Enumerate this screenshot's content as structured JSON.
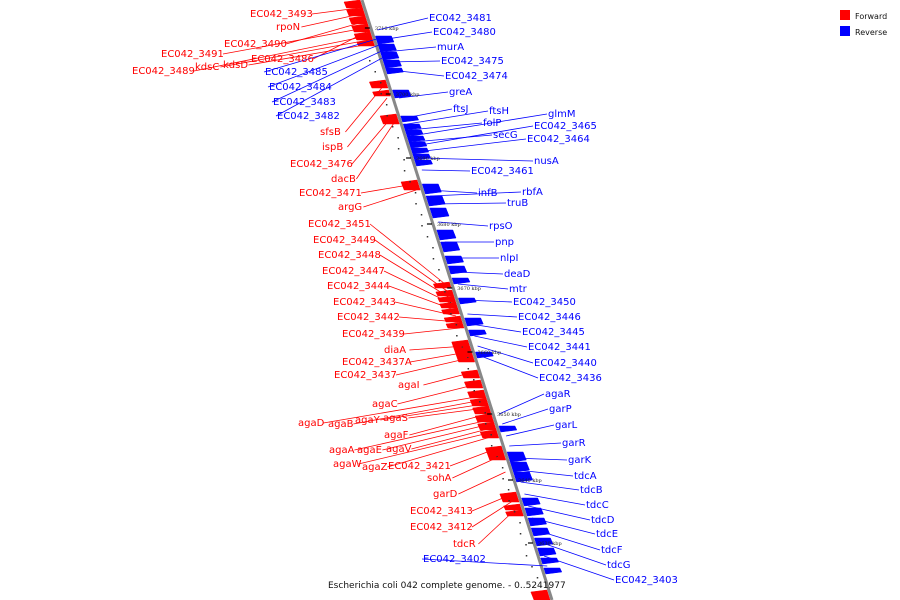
{
  "legend": [
    {
      "label": "Forward",
      "color": "#ff0000"
    },
    {
      "label": "Reverse",
      "color": "#0000ff"
    }
  ],
  "caption": "Escherichia coli 042 complete genome. - 0..5241977",
  "backbone_color": "#888888",
  "ticks": [
    "3710 kbp",
    "3700 kbp",
    "3690 kbp",
    "3680 kbp",
    "3670 kbp",
    "3660 kbp",
    "3650 kbp",
    "3640 kbp",
    "3630 kbp"
  ],
  "forward_genes": [
    "EC042_3493",
    "rpoN",
    "EC042_3490",
    "EC042_3491",
    "EC042_3486",
    "EC042_3489",
    "kdsC",
    "kdsD",
    "sfsB",
    "ispB",
    "EC042_3476",
    "dacB",
    "EC042_3471",
    "argG",
    "EC042_3451",
    "EC042_3449",
    "EC042_3448",
    "EC042_3447",
    "EC042_3444",
    "EC042_3443",
    "EC042_3442",
    "EC042_3439",
    "diaA",
    "EC042_3437A",
    "EC042_3437",
    "agaI",
    "agaC",
    "agaD",
    "agaB",
    "agaY",
    "agaS",
    "agaF",
    "agaA",
    "agaE",
    "agaV",
    "agaW",
    "agaZ",
    "EC042_3421",
    "sohA",
    "garD",
    "EC042_3413",
    "EC042_3412",
    "tdcR"
  ],
  "reverse_genes": [
    "EC042_3481",
    "EC042_3480",
    "murA",
    "EC042_3475",
    "EC042_3474",
    "EC042_3485",
    "EC042_3484",
    "EC042_3483",
    "EC042_3482",
    "greA",
    "ftsJ",
    "ftsH",
    "folP",
    "glmM",
    "secG",
    "EC042_3465",
    "EC042_3464",
    "nusA",
    "EC042_3461",
    "infB",
    "rbfA",
    "truB",
    "rpsO",
    "pnp",
    "nlpI",
    "deaD",
    "mtr",
    "EC042_3450",
    "EC042_3446",
    "EC042_3445",
    "EC042_3441",
    "EC042_3440",
    "EC042_3436",
    "agaR",
    "garP",
    "garL",
    "garR",
    "garK",
    "tdcA",
    "tdcB",
    "tdcC",
    "tdcD",
    "tdcE",
    "tdcF",
    "tdcG",
    "EC042_3403",
    "EC042_3402"
  ]
}
